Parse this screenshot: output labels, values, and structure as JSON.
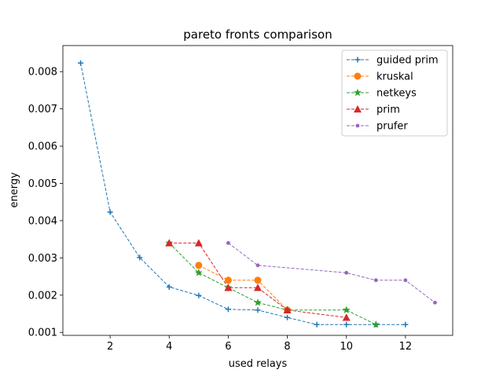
{
  "chart_data": {
    "type": "line",
    "title": "pareto fronts comparison",
    "xlabel": "used relays",
    "ylabel": "energy",
    "xlim": [
      0.4,
      13.6
    ],
    "ylim": [
      0.00092,
      0.0087
    ],
    "xticks": [
      2,
      4,
      6,
      8,
      10,
      12
    ],
    "yticks": [
      0.001,
      0.002,
      0.003,
      0.004,
      0.005,
      0.006,
      0.007,
      0.008
    ],
    "xtick_labels": [
      "2",
      "4",
      "6",
      "8",
      "10",
      "12"
    ],
    "ytick_labels": [
      "0.001",
      "0.002",
      "0.003",
      "0.004",
      "0.005",
      "0.006",
      "0.007",
      "0.008"
    ],
    "grid": false,
    "legend_position": "top-right",
    "series": [
      {
        "name": "guided prim",
        "color": "#1f77b4",
        "marker": "plus",
        "x": [
          1,
          2,
          3,
          4,
          5,
          6,
          7,
          8,
          9,
          10,
          11,
          12
        ],
        "y": [
          0.00823,
          0.00423,
          0.00301,
          0.00222,
          0.00199,
          0.00162,
          0.0016,
          0.0014,
          0.00121,
          0.00121,
          0.00121,
          0.00121
        ]
      },
      {
        "name": "kruskal",
        "color": "#ff7f0e",
        "marker": "circle",
        "x": [
          5,
          6,
          7,
          8
        ],
        "y": [
          0.0028,
          0.0024,
          0.0024,
          0.0016
        ]
      },
      {
        "name": "netkeys",
        "color": "#2ca02c",
        "marker": "star",
        "x": [
          4,
          5,
          6,
          7,
          8,
          10,
          11
        ],
        "y": [
          0.0034,
          0.0026,
          0.0022,
          0.0018,
          0.0016,
          0.0016,
          0.00121
        ]
      },
      {
        "name": "prim",
        "color": "#d62728",
        "marker": "triangle",
        "x": [
          4,
          5,
          6,
          7,
          8,
          10
        ],
        "y": [
          0.0034,
          0.0034,
          0.0022,
          0.0022,
          0.0016,
          0.0014
        ]
      },
      {
        "name": "prufer",
        "color": "#9467bd",
        "marker": "dot",
        "x": [
          6,
          7,
          10,
          11,
          12,
          13
        ],
        "y": [
          0.0034,
          0.0028,
          0.0026,
          0.0024,
          0.0024,
          0.0018
        ]
      }
    ]
  }
}
